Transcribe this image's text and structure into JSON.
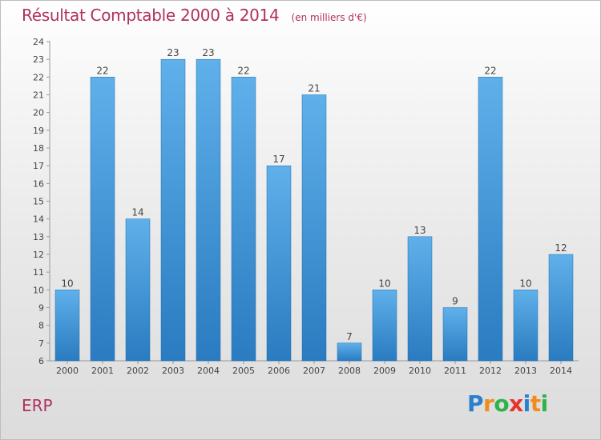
{
  "page": {
    "title": "Résultat Comptable 2000 à 2014",
    "subtitle": "(en milliers d'€)",
    "footer_label": "ERP",
    "logo_letters": [
      "P",
      "r",
      "o",
      "x",
      "i",
      "t",
      "i"
    ],
    "logo_colors": [
      "#2a7fcf",
      "#f08c1e",
      "#2db34a",
      "#e8322a",
      "#2a7fcf",
      "#f08c1e",
      "#2db34a"
    ]
  },
  "chart_data": {
    "type": "bar",
    "categories": [
      "2000",
      "2001",
      "2002",
      "2003",
      "2004",
      "2005",
      "2006",
      "2007",
      "2008",
      "2009",
      "2010",
      "2011",
      "2012",
      "2013",
      "2014"
    ],
    "values": [
      10,
      22,
      14,
      23,
      23,
      22,
      17,
      21,
      7,
      10,
      13,
      9,
      22,
      10,
      12
    ],
    "title": "Résultat Comptable 2000 à 2014",
    "subtitle": "(en milliers d'€)",
    "ylim": [
      6,
      24
    ],
    "yticks": [
      6,
      7,
      8,
      9,
      10,
      11,
      12,
      13,
      14,
      15,
      16,
      17,
      18,
      19,
      20,
      21,
      22,
      23,
      24
    ],
    "grid": false,
    "bar_color_light": "#5fb0ea",
    "bar_color_dark": "#2a7bc0"
  }
}
